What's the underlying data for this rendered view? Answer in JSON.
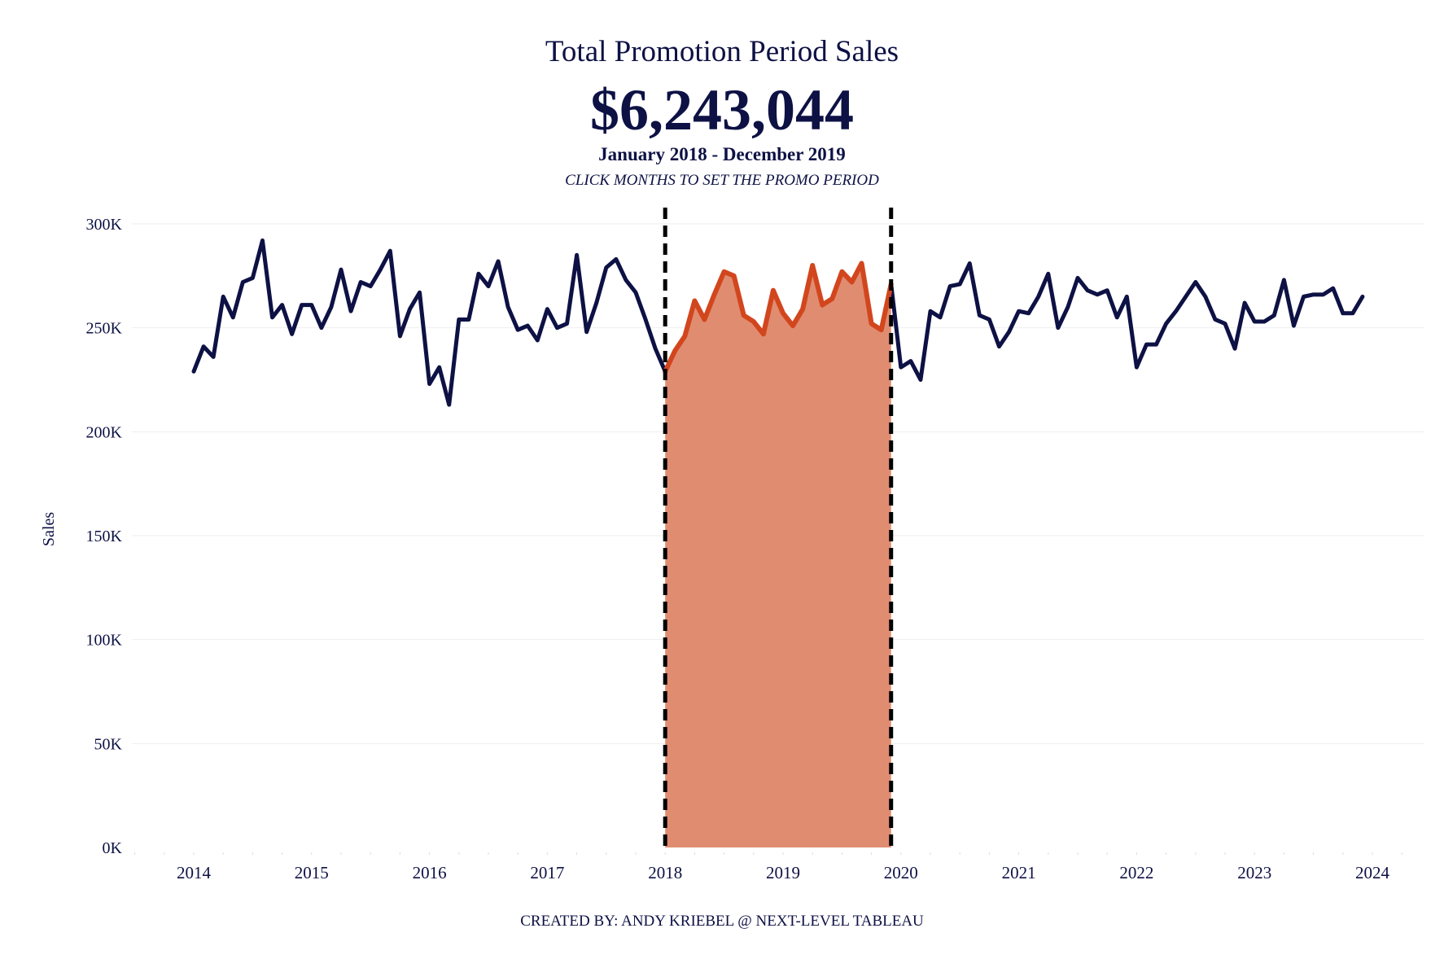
{
  "header": {
    "title": "Total Promotion Period Sales",
    "total": "$6,243,044",
    "period": "January 2018 - December 2019",
    "instruction": "CLICK MONTHS TO SET THE PROMO PERIOD"
  },
  "footer": {
    "credit": "CREATED BY: ANDY KRIEBEL @ NEXT-LEVEL TABLEAU"
  },
  "colors": {
    "line": "#0d1144",
    "promo_line": "#d2461e",
    "promo_fill": "#e08c70",
    "marker": "#000000",
    "grid": "#eeeeee"
  },
  "chart_data": {
    "type": "line",
    "title": "Total Promotion Period Sales",
    "ylabel": "Sales",
    "xlabel": "",
    "ylim": [
      0,
      300000
    ],
    "yticks": [
      0,
      50000,
      100000,
      150000,
      200000,
      250000,
      300000
    ],
    "ytick_labels": [
      "0K",
      "50K",
      "100K",
      "150K",
      "200K",
      "250K",
      "300K"
    ],
    "xticks": [
      "2014",
      "2015",
      "2016",
      "2017",
      "2018",
      "2019",
      "2020",
      "2021",
      "2022",
      "2023",
      "2024"
    ],
    "start": "2014-01",
    "promo_start": "2018-01",
    "promo_end": "2019-12",
    "grid": true,
    "series": [
      {
        "name": "Sales",
        "values": [
          229000,
          241000,
          236000,
          265000,
          255000,
          272000,
          274000,
          292000,
          255000,
          261000,
          247000,
          261000,
          261000,
          250000,
          260000,
          278000,
          258000,
          272000,
          270000,
          278000,
          287000,
          246000,
          259000,
          267000,
          223000,
          231000,
          213000,
          254000,
          254000,
          276000,
          270000,
          282000,
          260000,
          249000,
          251000,
          244000,
          259000,
          250000,
          252000,
          285000,
          248000,
          262000,
          279000,
          283000,
          273000,
          267000,
          254000,
          240000,
          229000,
          239000,
          246000,
          263000,
          254000,
          266000,
          277000,
          275000,
          256000,
          253000,
          247000,
          268000,
          257000,
          251000,
          259000,
          280000,
          261000,
          264000,
          277000,
          272000,
          281000,
          252000,
          249000,
          271000,
          231000,
          234000,
          225000,
          258000,
          255000,
          270000,
          271000,
          281000,
          256000,
          254000,
          241000,
          248000,
          258000,
          257000,
          265000,
          276000,
          250000,
          260000,
          274000,
          268000,
          266000,
          268000,
          255000,
          265000,
          231000,
          242000,
          242000,
          252000,
          258000,
          265000,
          272000,
          265000,
          254000,
          252000,
          240000,
          262000,
          253000,
          253000,
          256000,
          273000,
          251000,
          265000,
          266000,
          266000,
          269000,
          257000,
          257000,
          265000
        ]
      }
    ]
  }
}
